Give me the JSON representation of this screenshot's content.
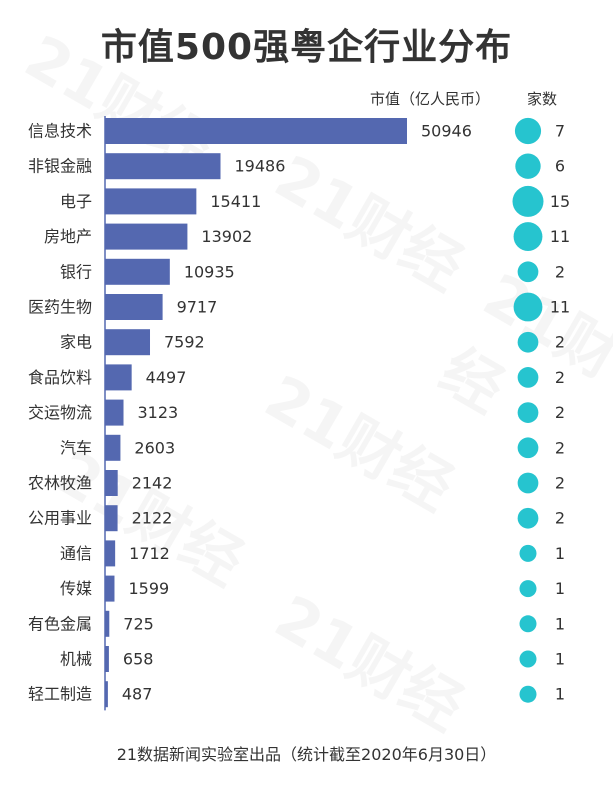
{
  "title": "市值500强粤企行业分布",
  "footer": "21数据新闻实验室出品（统计截至2020年6月30日）",
  "watermark": "21财经",
  "colors": {
    "bar": "#5468b0",
    "bubble": "#26c4cf",
    "text": "#333333"
  },
  "chart_data": {
    "type": "bar",
    "orientation": "horizontal",
    "title": "市值500强粤企行业分布",
    "categories": [
      "信息技术",
      "非银金融",
      "电子",
      "房地产",
      "银行",
      "医药生物",
      "家电",
      "食品饮料",
      "交运物流",
      "汽车",
      "农林牧渔",
      "公用事业",
      "通信",
      "传媒",
      "有色金属",
      "机械",
      "轻工制造"
    ],
    "series": [
      {
        "name": "市值（亿人民币）",
        "values": [
          50946,
          19486,
          15411,
          13902,
          10935,
          9717,
          7592,
          4497,
          3123,
          2603,
          2142,
          2122,
          1712,
          1599,
          725,
          658,
          487
        ]
      },
      {
        "name": "家数",
        "values": [
          7,
          6,
          15,
          11,
          2,
          11,
          2,
          2,
          2,
          2,
          2,
          2,
          1,
          1,
          1,
          1,
          1
        ]
      }
    ],
    "grid": false,
    "legend": "none"
  }
}
